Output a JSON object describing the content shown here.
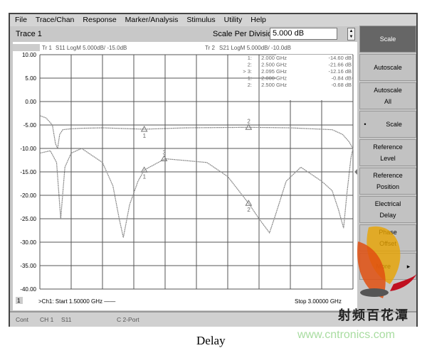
{
  "menu": [
    "File",
    "Trace/Chan",
    "Response",
    "Marker/Analysis",
    "Stimulus",
    "Utility",
    "Help"
  ],
  "trace_title": "Trace 1",
  "scale_per_division": {
    "label": "Scale Per Division",
    "value": "5.000 dB"
  },
  "side_buttons": [
    {
      "label": "Scale",
      "active": true
    },
    {
      "label": "Autoscale"
    },
    {
      "label": "Autoscale All"
    },
    {
      "label": "Scale",
      "bullet": "•"
    },
    {
      "label": "Reference Level"
    },
    {
      "label": "Reference Position"
    },
    {
      "label": "Electrical Delay"
    },
    {
      "label": "Phase Offset"
    },
    {
      "label": "More",
      "arrow": "▸"
    }
  ],
  "plot": {
    "tr1_label": "Tr 1",
    "tr1_info": "S11 LogM 5.000dB/  -15.0dB",
    "tr2_label": "Tr 2",
    "tr2_info": "S21 LogM 5.000dB/  -10.0dB",
    "y_ticks": [
      "10.00",
      "5.00",
      "0.00",
      "-5.00",
      "-10.00",
      "-15.00",
      "-20.00",
      "-25.00",
      "-30.00",
      "-35.00",
      "-40.00"
    ],
    "ref_marker": "-15.00",
    "channel_badge": "1",
    "start": ">Ch1: Start  1.50000 GHz ——",
    "stop": "Stop  3.00000 GHz",
    "marker_table": [
      [
        "1:",
        "2.000 GHz",
        "-14.60 dB"
      ],
      [
        "2:",
        "2.500 GHz",
        "-21.66 dB"
      ],
      [
        "> 3:",
        "2.095 GHz",
        "-12.16 dB"
      ],
      [
        "1:",
        "2.000 GHz",
        "-0.84 dB"
      ],
      [
        "2:",
        "2.500 GHz",
        "-0.68 dB"
      ]
    ],
    "colors": {
      "trace": "#888888",
      "grid": "#555555"
    }
  },
  "chart_data": {
    "type": "line",
    "xlim": [
      1.5,
      3.0
    ],
    "ylim": [
      -40,
      10
    ],
    "series": [
      {
        "name": "S21",
        "x": [
          1.5,
          1.53,
          1.56,
          1.575,
          1.585,
          1.595,
          1.61,
          1.65,
          1.7,
          1.8,
          2.0,
          2.2,
          2.5,
          2.7,
          2.9,
          2.95,
          2.98,
          3.0
        ],
        "y": [
          -3,
          -3.5,
          -5,
          -9,
          -10,
          -7,
          -6,
          -5.8,
          -5.7,
          -5.6,
          -5.9,
          -5.6,
          -5.5,
          -5.6,
          -6,
          -7,
          -8.5,
          -10
        ]
      },
      {
        "name": "S11",
        "x": [
          1.5,
          1.55,
          1.58,
          1.6,
          1.62,
          1.65,
          1.7,
          1.8,
          1.85,
          1.88,
          1.9,
          1.93,
          1.97,
          2.0,
          2.1,
          2.3,
          2.4,
          2.5,
          2.55,
          2.6,
          2.63,
          2.68,
          2.75,
          2.85,
          2.9,
          2.93,
          2.955,
          2.97,
          2.99,
          3.0
        ],
        "y": [
          -11,
          -10.5,
          -13,
          -25,
          -14,
          -11,
          -10,
          -13,
          -18,
          -25,
          -29,
          -22,
          -17,
          -14.6,
          -12.2,
          -13,
          -16,
          -21.7,
          -25,
          -28,
          -24,
          -17,
          -14,
          -17,
          -19,
          -23,
          -27,
          -20,
          -12,
          -10
        ]
      }
    ],
    "markers": [
      {
        "series": "S21",
        "id": "1",
        "x": 2.0,
        "y": -5.9
      },
      {
        "series": "S21",
        "id": "2",
        "x": 2.5,
        "y": -5.5
      },
      {
        "series": "S11",
        "id": "1",
        "x": 2.0,
        "y": -14.6
      },
      {
        "series": "S11",
        "id": "2",
        "x": 2.5,
        "y": -21.7
      },
      {
        "series": "S11",
        "id": "3",
        "x": 2.095,
        "y": -12.2
      }
    ]
  },
  "status": {
    "mode": "Cont",
    "channel": "CH 1",
    "param": "S11",
    "port": "C 2-Port"
  },
  "caption": "Delay",
  "watermark": "www.cntronics.com",
  "watermark_cn": "射频百花潭"
}
